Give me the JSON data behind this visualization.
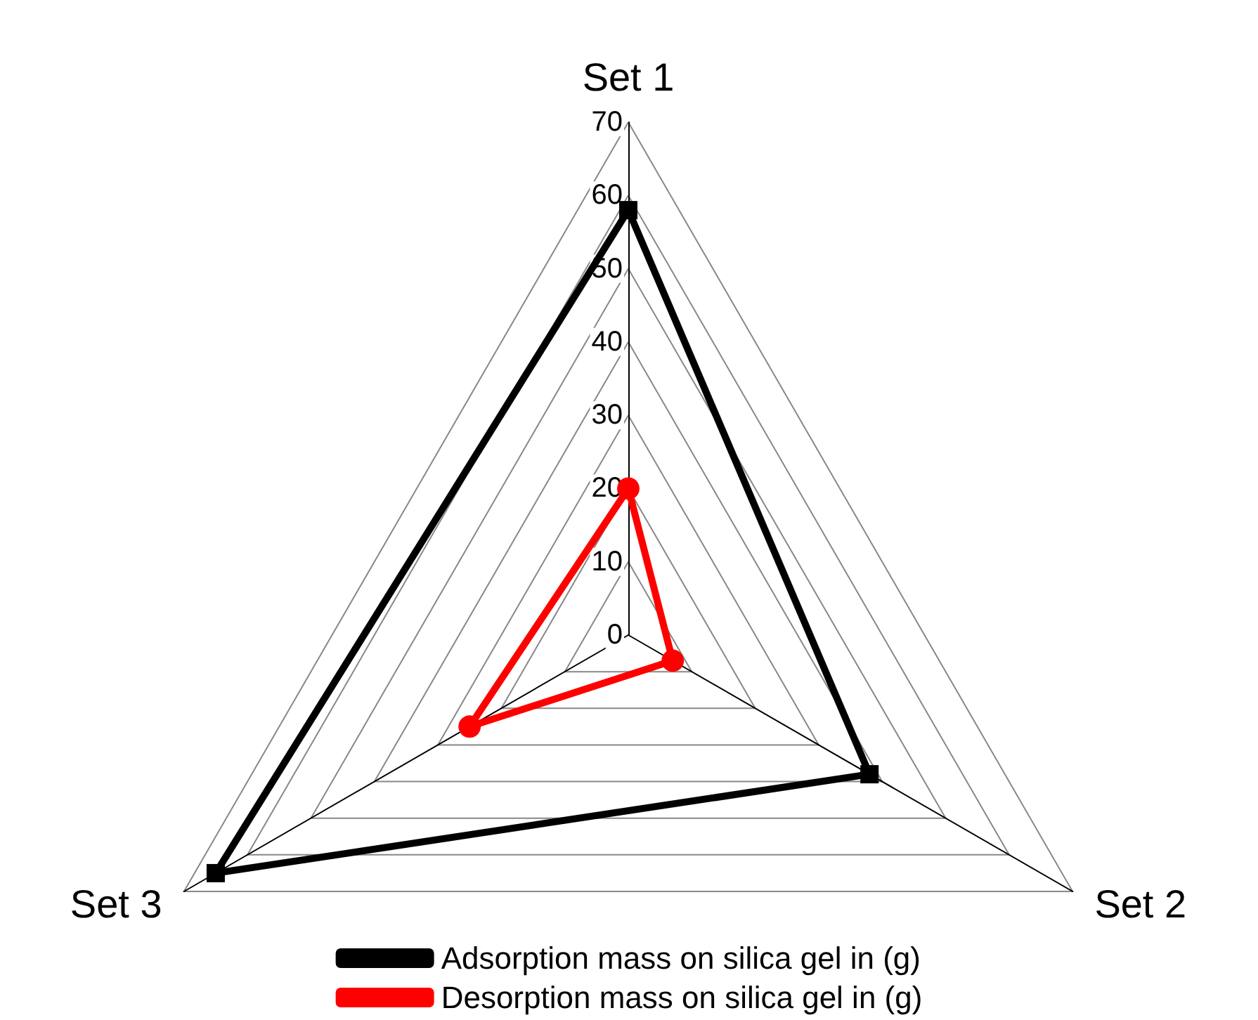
{
  "chart_data": {
    "type": "radar",
    "categories": [
      "Set 1",
      "Set 2",
      "Set 3"
    ],
    "series": [
      {
        "name": "Adsorption mass on silica gel in (g)",
        "color": "#000000",
        "marker": "square",
        "values": [
          58,
          38,
          65
        ]
      },
      {
        "name": "Desorption mass on silica gel in (g)",
        "color": "#ff0000",
        "marker": "circle",
        "values": [
          20,
          7,
          25
        ]
      }
    ],
    "ylim": [
      0,
      70
    ],
    "yticks": [
      0,
      10,
      20,
      30,
      40,
      50,
      60,
      70
    ],
    "grid": true,
    "legend": "bottom",
    "line_style": "solid"
  }
}
